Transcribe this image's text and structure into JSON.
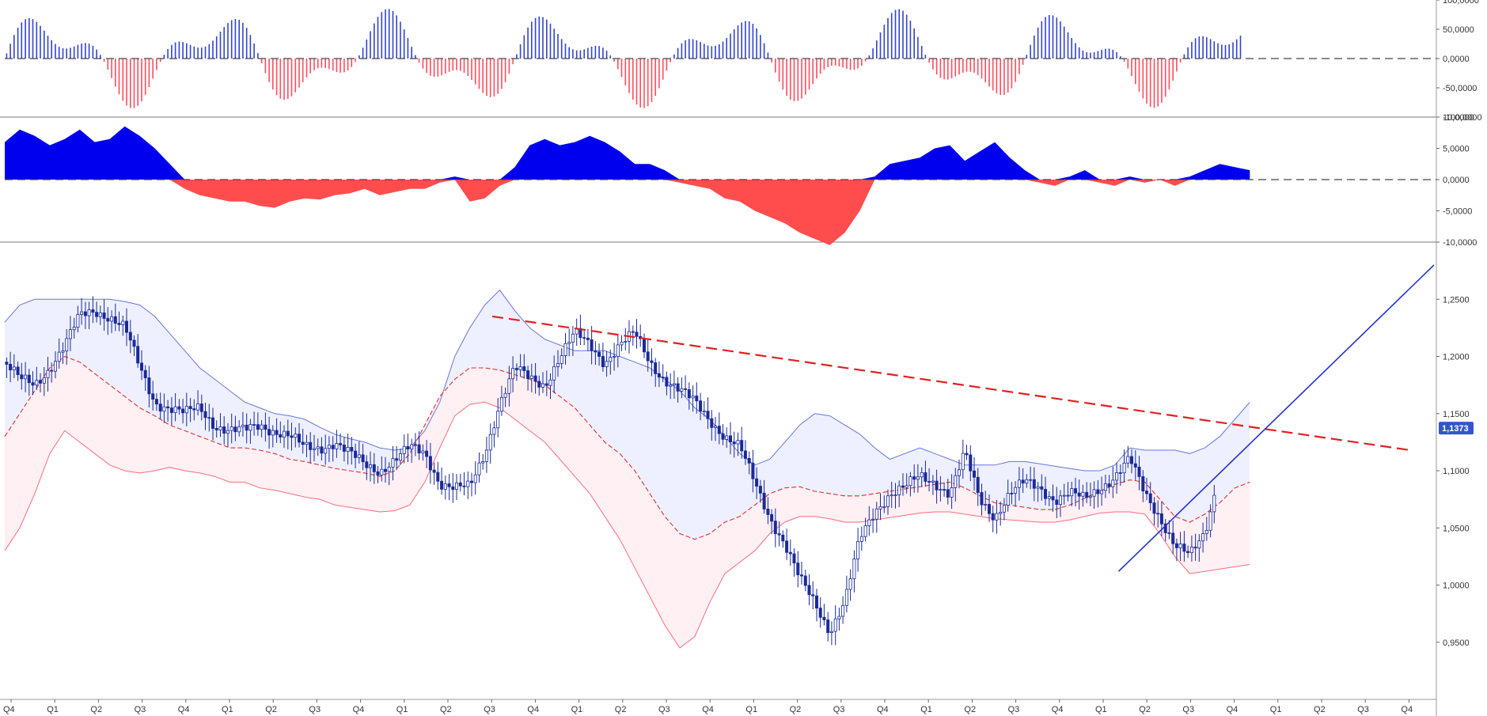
{
  "chart_data": [
    {
      "panel": "oscillator-histogram",
      "type": "bar",
      "ylim": [
        -100000,
        100000
      ],
      "yticks": [
        "100,0000",
        "50,0000",
        "0,0000",
        "-50,0000",
        "-100,0000"
      ],
      "ytick_values": [
        100000,
        50000,
        0,
        -50000,
        -100000
      ],
      "zero_line": "dashed",
      "colors": {
        "positive": "#3344cc",
        "negative": "#ff4d5e"
      }
    },
    {
      "panel": "oscillator-area",
      "type": "area",
      "ylim": [
        -10000,
        10000
      ],
      "yticks": [
        "10,0000",
        "5,0000",
        "0,0000",
        "-5,0000",
        "-10,0000"
      ],
      "ytick_values": [
        10000,
        5000,
        0,
        -5000,
        -10000
      ],
      "zero_line": "dashed",
      "colors": {
        "positive": "#0000ee",
        "negative": "#ff4d4d"
      },
      "x": [
        0,
        4,
        8,
        12,
        16,
        20,
        24,
        28,
        32,
        36,
        40,
        44,
        48,
        52,
        56,
        60,
        64,
        68,
        72,
        76,
        80,
        84,
        88,
        92,
        96,
        100,
        104,
        108,
        112,
        116,
        120,
        124,
        128,
        132,
        136,
        140,
        144,
        148,
        152,
        156,
        160,
        164,
        168,
        172,
        176,
        180,
        184,
        188,
        192,
        196,
        200,
        204,
        208,
        212,
        216,
        220,
        224,
        228,
        232,
        236,
        240,
        244,
        248,
        252,
        256,
        260,
        264,
        268,
        272,
        276,
        280,
        284,
        288,
        292,
        296,
        300,
        304,
        308,
        312,
        316,
        320,
        324,
        328,
        332
      ],
      "values": [
        6000,
        8000,
        7000,
        5500,
        6500,
        8000,
        6000,
        6500,
        8500,
        7000,
        5000,
        2500,
        -1500,
        -2500,
        -3000,
        -3500,
        -3500,
        -4200,
        -4500,
        -3500,
        -3000,
        -3200,
        -2500,
        -2200,
        -1500,
        -2500,
        -2000,
        -1500,
        -1500,
        -500,
        500,
        -3500,
        -3000,
        -1000,
        2000,
        5500,
        6500,
        5500,
        6000,
        7000,
        6000,
        4500,
        2500,
        2500,
        1500,
        -500,
        -1000,
        -1500,
        -3000,
        -3500,
        -5000,
        -6000,
        -7000,
        -8500,
        -9500,
        -10500,
        -8500,
        -5000,
        500,
        2500,
        3000,
        3500,
        5000,
        5500,
        3000,
        4500,
        6000,
        3500,
        1500,
        -500,
        -1000,
        500,
        1500,
        -500,
        -1000,
        500,
        -500,
        0,
        -1000,
        500,
        1500,
        2500,
        2000,
        1500
      ]
    },
    {
      "panel": "price",
      "type": "line",
      "ylim": [
        0.9,
        1.3
      ],
      "yticks": [
        "1,2500",
        "1,2000",
        "1,1500",
        "1,1000",
        "1,0500",
        "1,0000",
        "0,9500"
      ],
      "ytick_values": [
        1.25,
        1.2,
        1.15,
        1.1,
        1.05,
        1.0,
        0.95
      ],
      "last_price_label": "1,1373",
      "last_price": 1.1373,
      "xticks": [
        "Q4",
        "Q1",
        "Q2",
        "Q3",
        "Q4",
        "Q1",
        "Q2",
        "Q3",
        "Q4",
        "Q1",
        "Q2",
        "Q3",
        "Q4",
        "Q1",
        "Q2",
        "Q3",
        "Q4",
        "Q1",
        "Q2",
        "Q3",
        "Q4",
        "Q1",
        "Q2",
        "Q3",
        "Q4",
        "Q1",
        "Q2",
        "Q3",
        "Q4",
        "Q1",
        "Q2",
        "Q3",
        "Q4"
      ],
      "colors": {
        "candles": "#1a2a99",
        "band_upper": "#6677dd",
        "band_lower": "#ff6b7d",
        "band_fill_upper": "#eef0ff",
        "band_fill_lower": "#fff0f3",
        "middle_band": "#e03030",
        "trendline_down": "#e02020",
        "trendline_up": "#2233cc",
        "price_label_bg": "#3355cc"
      },
      "x": [
        0,
        4,
        8,
        12,
        16,
        20,
        24,
        28,
        32,
        36,
        40,
        44,
        48,
        52,
        56,
        60,
        64,
        68,
        72,
        76,
        80,
        84,
        88,
        92,
        96,
        100,
        104,
        108,
        112,
        116,
        120,
        124,
        128,
        132,
        136,
        140,
        144,
        148,
        152,
        156,
        160,
        164,
        168,
        172,
        176,
        180,
        184,
        188,
        192,
        196,
        200,
        204,
        208,
        212,
        216,
        220,
        224,
        228,
        232,
        236,
        240,
        244,
        248,
        252,
        256,
        260,
        264,
        268,
        272,
        276,
        280,
        284,
        288,
        292,
        296,
        300,
        304,
        308,
        312,
        316,
        320,
        324,
        328,
        332
      ],
      "close": [
        1.195,
        1.18,
        1.175,
        1.19,
        1.21,
        1.235,
        1.24,
        1.235,
        1.225,
        1.19,
        1.16,
        1.155,
        1.15,
        1.155,
        1.14,
        1.135,
        1.135,
        1.14,
        1.135,
        1.13,
        1.12,
        1.12,
        1.125,
        1.115,
        1.105,
        1.1,
        1.11,
        1.12,
        1.115,
        1.09,
        1.085,
        1.085,
        1.115,
        1.16,
        1.19,
        1.18,
        1.175,
        1.2,
        1.22,
        1.21,
        1.195,
        1.21,
        1.22,
        1.195,
        1.18,
        1.17,
        1.16,
        1.145,
        1.13,
        1.12,
        1.09,
        1.06,
        1.035,
        1.005,
        0.985,
        0.96,
        0.985,
        1.04,
        1.065,
        1.08,
        1.085,
        1.095,
        1.09,
        1.08,
        1.115,
        1.075,
        1.06,
        1.08,
        1.09,
        1.085,
        1.075,
        1.08,
        1.075,
        1.085,
        1.095,
        1.11,
        1.08,
        1.06,
        1.035,
        1.025,
        1.045,
        1.1,
        1.13,
        1.137
      ],
      "upper_band": [
        1.23,
        1.245,
        1.25,
        1.25,
        1.25,
        1.25,
        1.25,
        1.25,
        1.248,
        1.245,
        1.235,
        1.22,
        1.205,
        1.19,
        1.18,
        1.17,
        1.16,
        1.155,
        1.15,
        1.148,
        1.145,
        1.138,
        1.132,
        1.128,
        1.125,
        1.12,
        1.118,
        1.12,
        1.135,
        1.16,
        1.2,
        1.225,
        1.245,
        1.258,
        1.24,
        1.225,
        1.215,
        1.21,
        1.205,
        1.205,
        1.205,
        1.2,
        1.195,
        1.19,
        1.18,
        1.17,
        1.155,
        1.145,
        1.13,
        1.115,
        1.105,
        1.11,
        1.125,
        1.14,
        1.15,
        1.148,
        1.14,
        1.132,
        1.12,
        1.11,
        1.115,
        1.12,
        1.115,
        1.11,
        1.105,
        1.105,
        1.105,
        1.108,
        1.108,
        1.106,
        1.104,
        1.102,
        1.1,
        1.1,
        1.105,
        1.12,
        1.118,
        1.118,
        1.118,
        1.115,
        1.12,
        1.13,
        1.145,
        1.16
      ],
      "middle_band": [
        1.13,
        1.15,
        1.17,
        1.19,
        1.2,
        1.195,
        1.185,
        1.175,
        1.165,
        1.155,
        1.148,
        1.14,
        1.135,
        1.13,
        1.125,
        1.12,
        1.12,
        1.118,
        1.115,
        1.11,
        1.108,
        1.105,
        1.102,
        1.1,
        1.098,
        1.095,
        1.1,
        1.115,
        1.14,
        1.165,
        1.18,
        1.19,
        1.19,
        1.188,
        1.184,
        1.18,
        1.175,
        1.165,
        1.155,
        1.14,
        1.125,
        1.115,
        1.1,
        1.08,
        1.06,
        1.045,
        1.04,
        1.045,
        1.055,
        1.06,
        1.07,
        1.08,
        1.085,
        1.086,
        1.082,
        1.08,
        1.078,
        1.078,
        1.08,
        1.082,
        1.084,
        1.086,
        1.088,
        1.09,
        1.085,
        1.078,
        1.072,
        1.07,
        1.068,
        1.066,
        1.066,
        1.07,
        1.076,
        1.082,
        1.088,
        1.092,
        1.09,
        1.075,
        1.06,
        1.055,
        1.062,
        1.072,
        1.085,
        1.09
      ],
      "lower_band": [
        1.03,
        1.05,
        1.08,
        1.115,
        1.135,
        1.125,
        1.115,
        1.105,
        1.1,
        1.098,
        1.1,
        1.103,
        1.1,
        1.098,
        1.095,
        1.09,
        1.09,
        1.085,
        1.083,
        1.08,
        1.077,
        1.075,
        1.07,
        1.068,
        1.066,
        1.064,
        1.065,
        1.07,
        1.09,
        1.12,
        1.148,
        1.158,
        1.16,
        1.155,
        1.145,
        1.135,
        1.125,
        1.11,
        1.095,
        1.08,
        1.06,
        1.04,
        1.015,
        0.99,
        0.965,
        0.945,
        0.955,
        0.985,
        1.01,
        1.02,
        1.03,
        1.045,
        1.055,
        1.06,
        1.06,
        1.058,
        1.055,
        1.055,
        1.057,
        1.059,
        1.061,
        1.063,
        1.064,
        1.064,
        1.062,
        1.06,
        1.058,
        1.057,
        1.056,
        1.055,
        1.055,
        1.057,
        1.06,
        1.063,
        1.064,
        1.064,
        1.062,
        1.045,
        1.025,
        1.01,
        1.012,
        1.014,
        1.016,
        1.018
      ],
      "trendline_down": {
        "from": [
          130,
          1.235
        ],
        "to": [
          360,
          1.128
        ]
      },
      "trendline_up": {
        "from": [
          297,
          1.012
        ],
        "to": [
          360,
          1.28
        ]
      },
      "last_candle_x": 322
    }
  ]
}
